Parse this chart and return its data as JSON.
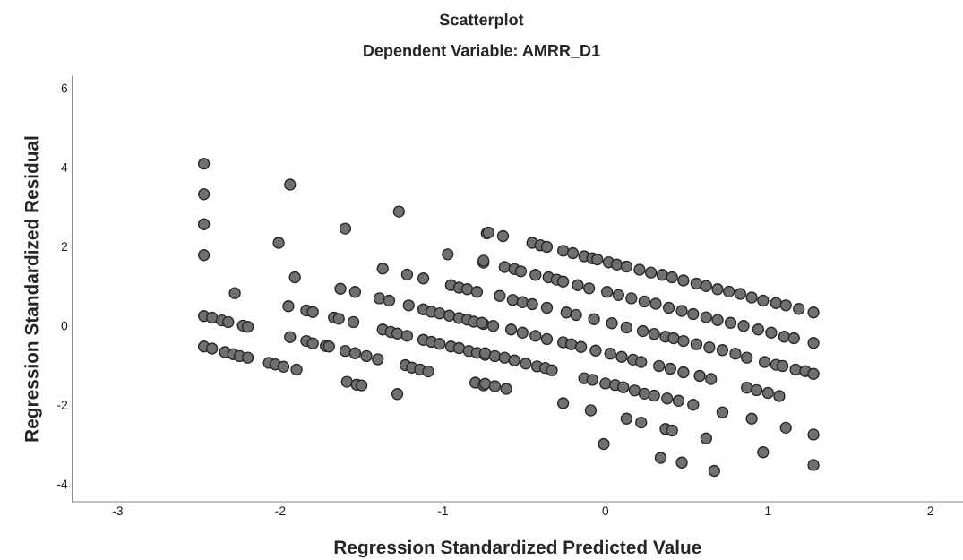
{
  "chart_data": {
    "type": "scatter",
    "title": "Scatterplot",
    "subtitle": "Dependent Variable: AMRR_D1",
    "xlabel": "Regression Standardized Predicted Value",
    "ylabel": "Regression Standardized Residual",
    "xlim": [
      -3.28,
      2.2
    ],
    "ylim": [
      -4.45,
      6.3
    ],
    "xticks": [
      -3,
      -2,
      -1,
      0,
      1,
      2
    ],
    "yticks": [
      -4,
      -2,
      0,
      2,
      4,
      6
    ],
    "grid": false,
    "legend": false,
    "marker": "circle",
    "series": [
      {
        "color": "#707070",
        "x": [
          -2.47,
          -2.47,
          -2.47,
          -2.47,
          -2.47,
          -2.42,
          -2.36,
          -2.32,
          -2.23,
          -2.2,
          -2.28,
          -2.47,
          -2.42,
          -2.34,
          -2.29,
          -2.25,
          -2.2,
          -2.07,
          -2.03,
          -1.98,
          -1.9,
          -1.94,
          -2.01,
          -1.91,
          -1.95,
          -1.84,
          -1.8,
          -1.94,
          -1.84,
          -1.8,
          -1.72,
          -1.7,
          -1.6,
          -1.63,
          -1.54,
          -1.67,
          -1.64,
          -1.55,
          -1.6,
          -1.54,
          -1.47,
          -1.4,
          -1.59,
          -1.53,
          -1.5,
          -1.27,
          -1.37,
          -1.22,
          -1.12,
          -1.39,
          -1.33,
          -1.21,
          -1.37,
          -1.32,
          -1.28,
          -1.22,
          -1.23,
          -1.19,
          -1.14,
          -1.09,
          -1.28,
          -1.12,
          -1.07,
          -1.02,
          -0.96,
          -0.9,
          -0.85,
          -0.81,
          -0.97,
          -0.95,
          -0.9,
          -0.85,
          -0.79,
          -0.75,
          -0.73,
          -1.12,
          -1.07,
          -1.02,
          -0.95,
          -0.9,
          -0.84,
          -0.79,
          -0.74,
          -0.8,
          -0.75,
          -0.75,
          -0.72,
          -0.63,
          -0.45,
          -0.4,
          -0.36,
          -0.26,
          -0.2,
          -0.13,
          -0.08,
          -0.05,
          0.02,
          0.07,
          0.13,
          0.21,
          0.28,
          0.35,
          0.41,
          0.48,
          0.56,
          0.62,
          0.69,
          0.76,
          0.83,
          0.9,
          0.97,
          1.05,
          1.11,
          1.19,
          1.28,
          -0.75,
          -0.62,
          -0.56,
          -0.52,
          -0.43,
          -0.35,
          -0.3,
          -0.26,
          -0.17,
          -0.1,
          0.01,
          0.08,
          0.16,
          0.24,
          0.31,
          0.39,
          0.47,
          0.54,
          0.62,
          0.69,
          0.77,
          0.85,
          0.94,
          1.02,
          1.1,
          1.16,
          1.28,
          -0.65,
          -0.57,
          -0.51,
          -0.45,
          -0.36,
          -0.24,
          -0.18,
          -0.07,
          0.04,
          0.13,
          0.23,
          0.3,
          0.37,
          0.42,
          0.48,
          0.56,
          0.64,
          0.72,
          0.8,
          0.87,
          0.98,
          1.05,
          1.09,
          1.17,
          1.23,
          1.28,
          -0.76,
          -0.69,
          -0.58,
          -0.51,
          -0.43,
          -0.36,
          -0.26,
          -0.21,
          -0.15,
          -0.06,
          0.03,
          0.1,
          0.17,
          0.22,
          0.33,
          0.4,
          0.48,
          0.58,
          0.65,
          -0.74,
          -0.68,
          -0.62,
          -0.56,
          -0.49,
          -0.42,
          -0.37,
          -0.33,
          -0.13,
          -0.08,
          0.0,
          0.06,
          0.11,
          0.18,
          0.24,
          0.3,
          0.38,
          0.45,
          0.54,
          0.72,
          0.87,
          0.93,
          1.0,
          1.07,
          -0.74,
          -0.68,
          -0.61,
          -0.26,
          -0.09,
          0.13,
          0.22,
          0.37,
          0.41,
          0.62,
          0.9,
          1.11,
          1.28,
          -0.01,
          0.34,
          0.47,
          0.67,
          0.97,
          1.28
        ],
        "values": [
          4.09,
          3.32,
          2.56,
          1.78,
          0.24,
          0.2,
          0.13,
          0.09,
          0.0,
          -0.03,
          0.82,
          -0.53,
          -0.58,
          -0.67,
          -0.72,
          -0.77,
          -0.81,
          -0.94,
          -0.98,
          -1.04,
          -1.11,
          3.56,
          2.09,
          1.22,
          0.49,
          0.38,
          0.34,
          -0.29,
          -0.39,
          -0.45,
          -0.52,
          -0.53,
          2.45,
          0.93,
          0.85,
          0.2,
          0.17,
          0.09,
          -0.64,
          -0.7,
          -0.77,
          -0.85,
          -1.42,
          -1.49,
          -1.51,
          2.88,
          1.44,
          1.29,
          1.19,
          0.69,
          0.63,
          0.51,
          -0.1,
          -0.16,
          -0.2,
          -0.26,
          -1.0,
          -1.06,
          -1.11,
          -1.16,
          -1.73,
          0.41,
          0.35,
          0.31,
          0.25,
          0.19,
          0.15,
          0.1,
          1.8,
          1.02,
          0.96,
          0.92,
          0.85,
          1.59,
          2.33,
          -0.36,
          -0.41,
          -0.46,
          -0.53,
          -0.57,
          -0.64,
          -0.69,
          -0.74,
          -1.44,
          -1.51,
          0.04,
          2.35,
          2.26,
          2.09,
          2.03,
          1.99,
          1.89,
          1.83,
          1.75,
          1.7,
          1.67,
          1.6,
          1.54,
          1.49,
          1.41,
          1.34,
          1.28,
          1.22,
          1.14,
          1.06,
          1.0,
          0.92,
          0.86,
          0.8,
          0.71,
          0.63,
          0.57,
          0.51,
          0.42,
          0.33,
          1.64,
          1.48,
          1.43,
          1.37,
          1.28,
          1.22,
          1.16,
          1.11,
          1.02,
          0.94,
          0.85,
          0.77,
          0.69,
          0.61,
          0.55,
          0.45,
          0.37,
          0.29,
          0.21,
          0.14,
          0.07,
          -0.01,
          -0.1,
          -0.18,
          -0.28,
          -0.32,
          -0.44,
          0.75,
          0.65,
          0.59,
          0.54,
          0.45,
          0.33,
          0.27,
          0.16,
          0.06,
          -0.05,
          -0.14,
          -0.21,
          -0.28,
          -0.32,
          -0.39,
          -0.47,
          -0.55,
          -0.62,
          -0.71,
          -0.81,
          -0.92,
          -0.99,
          -1.02,
          -1.11,
          -1.15,
          -1.22,
          0.07,
          -0.01,
          -0.1,
          -0.18,
          -0.26,
          -0.34,
          -0.42,
          -0.47,
          -0.54,
          -0.63,
          -0.71,
          -0.79,
          -0.86,
          -0.92,
          -1.02,
          -1.09,
          -1.18,
          -1.27,
          -1.35,
          -0.7,
          -0.77,
          -0.81,
          -0.88,
          -0.96,
          -1.03,
          -1.07,
          -1.13,
          -1.33,
          -1.37,
          -1.46,
          -1.5,
          -1.56,
          -1.64,
          -1.72,
          -1.77,
          -1.84,
          -1.9,
          -2.0,
          -2.19,
          -1.57,
          -1.63,
          -1.7,
          -1.78,
          -1.47,
          -1.53,
          -1.6,
          -1.96,
          -2.14,
          -2.35,
          -2.45,
          -2.61,
          -2.65,
          -2.85,
          -2.35,
          -2.58,
          -2.75,
          -2.99,
          -3.34,
          -3.46,
          -3.67,
          -3.2,
          -3.52
        ]
      }
    ]
  }
}
